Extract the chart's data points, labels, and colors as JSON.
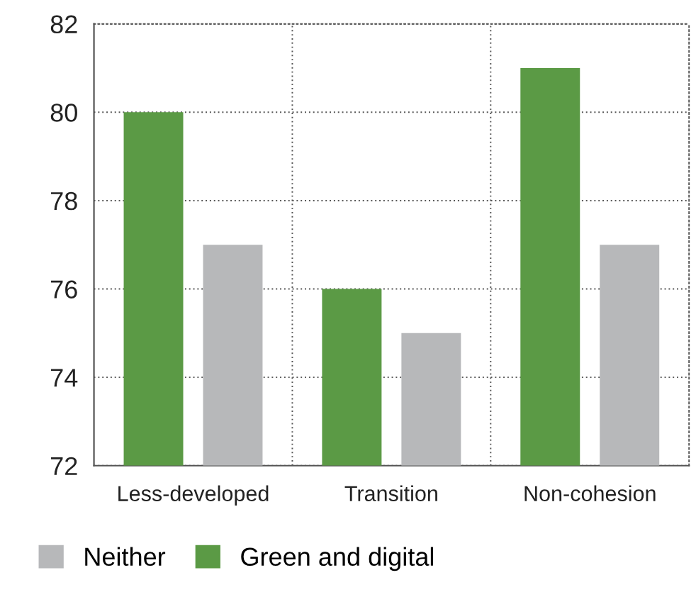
{
  "chart_data": {
    "type": "bar",
    "categories": [
      "Less-developed",
      "Transition",
      "Non-cohesion"
    ],
    "series": [
      {
        "name": "Green and digital",
        "color": "#5b9a45",
        "values": [
          80,
          76,
          81
        ]
      },
      {
        "name": "Neither",
        "color": "#b7b8ba",
        "values": [
          77,
          75,
          77
        ]
      }
    ],
    "ylim": [
      72,
      82
    ],
    "yticks": [
      72,
      74,
      76,
      78,
      80,
      82
    ],
    "grid": true,
    "legend": "bottom"
  }
}
